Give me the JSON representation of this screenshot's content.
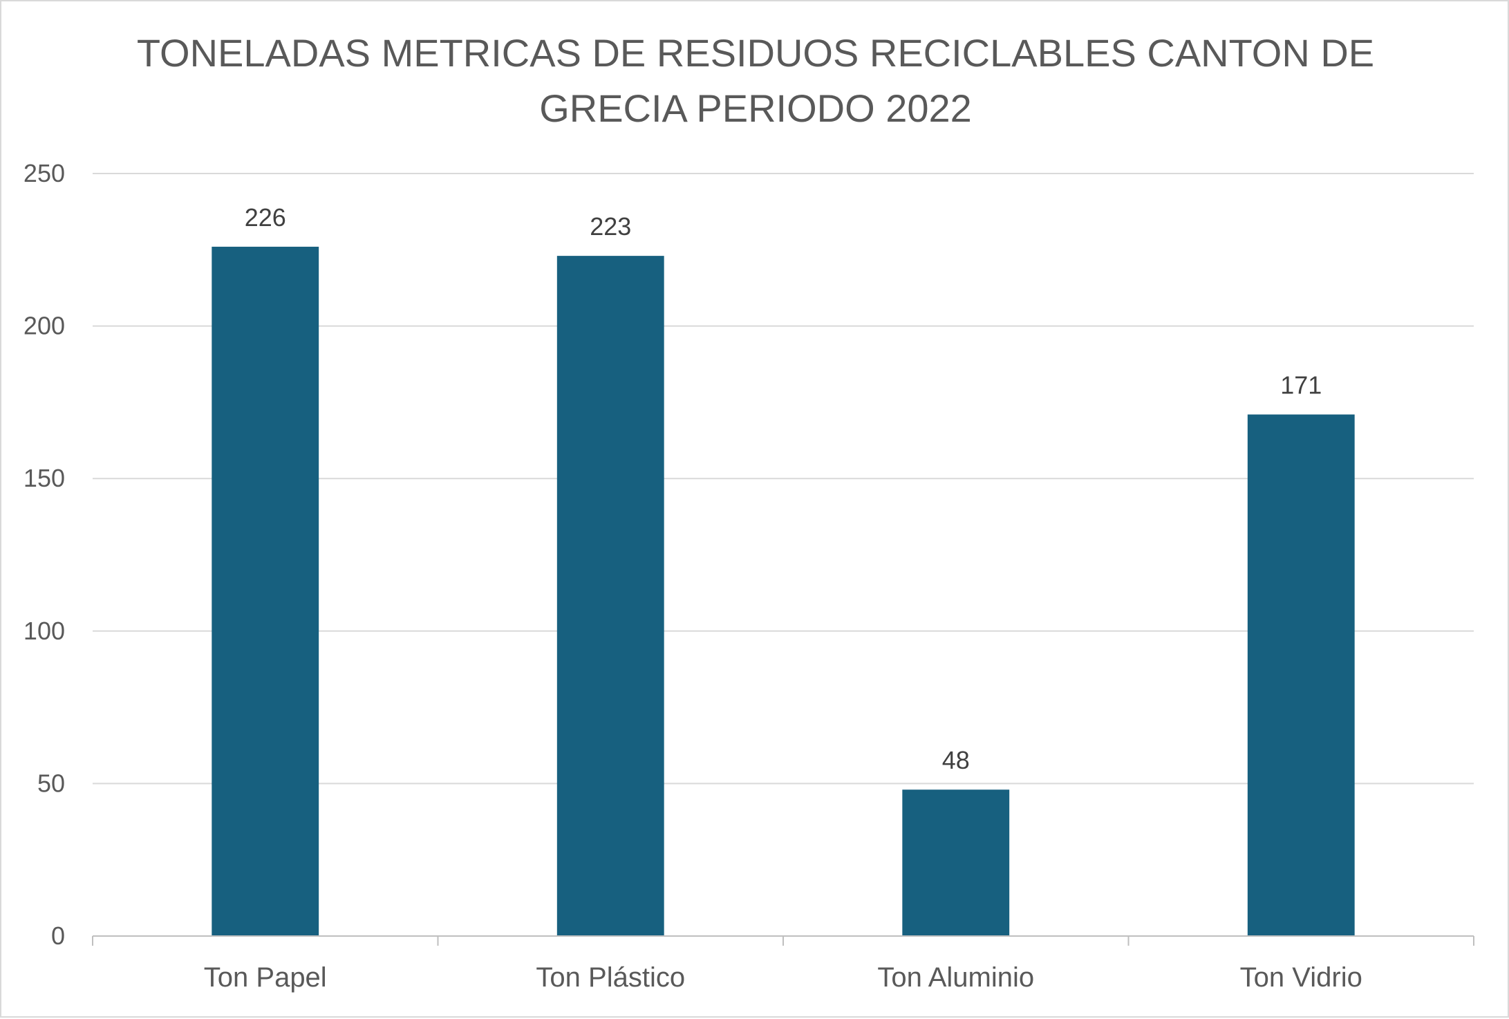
{
  "chart_data": {
    "type": "bar",
    "title": "TONELADAS METRICAS DE RESIDUOS RECICLABLES CANTON DE GRECIA PERIODO 2022",
    "title_lines": [
      "TONELADAS METRICAS DE RESIDUOS RECICLABLES CANTON DE",
      "GRECIA PERIODO 2022"
    ],
    "categories": [
      "Ton Papel",
      "Ton Plástico",
      "Ton Aluminio",
      "Ton Vidrio"
    ],
    "values": [
      226,
      223,
      48,
      171
    ],
    "data_labels": [
      "226",
      "223",
      "48",
      "171"
    ],
    "xlabel": "",
    "ylabel": "",
    "ylim": [
      0,
      250
    ],
    "yticks": [
      0,
      50,
      100,
      150,
      200,
      250
    ],
    "ytick_labels": [
      "0",
      "50",
      "100",
      "150",
      "200",
      "250"
    ],
    "grid": true,
    "legend": "none",
    "colors": {
      "bar": "#17607f",
      "grid": "#d9d9d9",
      "axis": "#bfbfbf",
      "text": "#595959",
      "data_label": "#404040"
    }
  }
}
